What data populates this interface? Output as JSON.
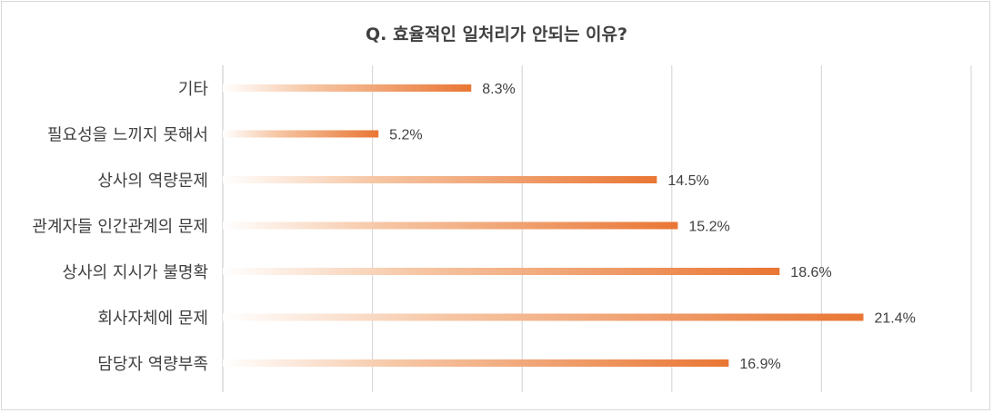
{
  "chart_data": {
    "type": "bar",
    "orientation": "horizontal",
    "title": "Q. 효율적인 일처리가 안되는 이유?",
    "categories": [
      "기타",
      "필요성을 느끼지 못해서",
      "상사의 역량문제",
      "관계자들 인간관계의 문제",
      "상사의 지시가 불명확",
      "회사자체에 문제",
      "담당자 역량부족"
    ],
    "values": [
      8.3,
      5.2,
      14.5,
      15.2,
      18.6,
      21.4,
      16.9
    ],
    "value_suffix": "%",
    "xlim": [
      0,
      25
    ],
    "x_gridlines": [
      0,
      5,
      10,
      15,
      20,
      25
    ],
    "grid": true,
    "legend": "none",
    "colors": {
      "bar_end": "#e97634",
      "bar_start": "#ffffff",
      "grid": "#d9d9d9",
      "text": "#404040"
    }
  }
}
